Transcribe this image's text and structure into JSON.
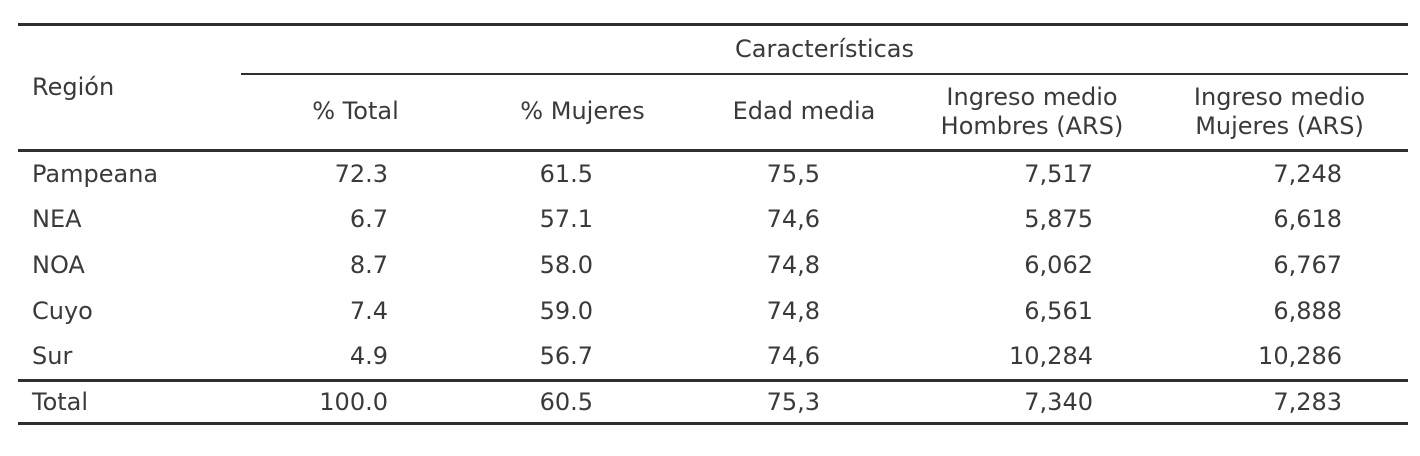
{
  "colors": {
    "text": "#3a3a3a",
    "rule": "#2f2f2f",
    "background": "#ffffff"
  },
  "table": {
    "corner_header": "Región",
    "group_header": "Características",
    "sub_headers": [
      "% Total",
      "% Mujeres",
      "Edad media",
      "Ingreso medio Hombres (ARS)",
      "Ingreso medio Mujeres (ARS)"
    ],
    "rows": [
      {
        "region": "Pampeana",
        "values": [
          "72.3",
          "61.5",
          "75,5",
          "7,517",
          "7,248"
        ]
      },
      {
        "region": "NEA",
        "values": [
          "6.7",
          "57.1",
          "74,6",
          "5,875",
          "6,618"
        ]
      },
      {
        "region": "NOA",
        "values": [
          "8.7",
          "58.0",
          "74,8",
          "6,062",
          "6,767"
        ]
      },
      {
        "region": "Cuyo",
        "values": [
          "7.4",
          "59.0",
          "74,8",
          "6,561",
          "6,888"
        ]
      },
      {
        "region": "Sur",
        "values": [
          "4.9",
          "56.7",
          "74,6",
          "10,284",
          "10,286"
        ]
      }
    ],
    "total": {
      "region": "Total",
      "values": [
        "100.0",
        "60.5",
        "75,3",
        "7,340",
        "7,283"
      ]
    }
  }
}
